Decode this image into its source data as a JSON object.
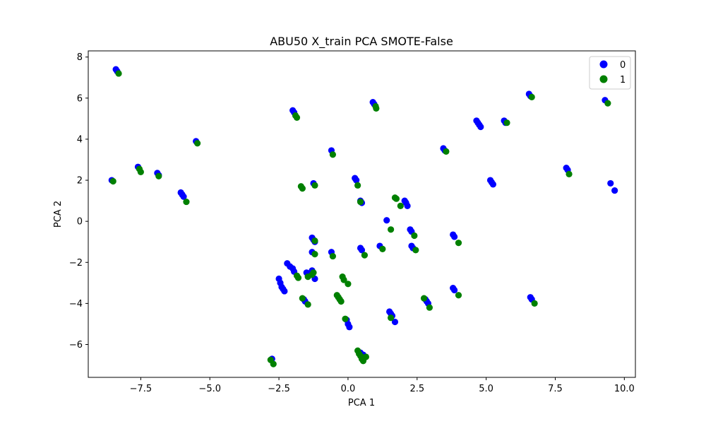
{
  "chart_data": {
    "type": "scatter",
    "title": "ABU50 X_train PCA SMOTE-False",
    "xlabel": "PCA 1",
    "ylabel": "PCA 2",
    "xlim": [
      -9.4,
      10.4
    ],
    "ylim": [
      -7.6,
      8.3
    ],
    "xticks": [
      -7.5,
      -5.0,
      -2.5,
      0.0,
      2.5,
      5.0,
      7.5,
      10.0
    ],
    "xtick_labels": [
      "−7.5",
      "−5.0",
      "−2.5",
      "0.0",
      "2.5",
      "5.0",
      "7.5",
      "10.0"
    ],
    "yticks": [
      -6,
      -4,
      -2,
      0,
      2,
      4,
      6,
      8
    ],
    "ytick_labels": [
      "−6",
      "−4",
      "−2",
      "0",
      "2",
      "4",
      "6",
      "8"
    ],
    "grid": false,
    "legend": "top-right",
    "series": [
      {
        "name": "0",
        "color": "#0000ff",
        "points": [
          [
            -8.4,
            7.4
          ],
          [
            -8.35,
            7.3
          ],
          [
            -2.0,
            5.4
          ],
          [
            -1.95,
            5.3
          ],
          [
            0.9,
            5.8
          ],
          [
            0.95,
            5.7
          ],
          [
            6.55,
            6.2
          ],
          [
            6.6,
            6.1
          ],
          [
            9.3,
            5.9
          ],
          [
            4.65,
            4.9
          ],
          [
            4.7,
            4.8
          ],
          [
            4.75,
            4.7
          ],
          [
            4.8,
            4.6
          ],
          [
            5.65,
            4.9
          ],
          [
            5.7,
            4.8
          ],
          [
            3.45,
            3.55
          ],
          [
            3.5,
            3.45
          ],
          [
            -5.5,
            3.9
          ],
          [
            -0.6,
            3.45
          ],
          [
            -7.6,
            2.65
          ],
          [
            -6.9,
            2.35
          ],
          [
            -6.85,
            2.25
          ],
          [
            -8.55,
            2.0
          ],
          [
            -6.05,
            1.4
          ],
          [
            -6.0,
            1.3
          ],
          [
            -5.95,
            1.2
          ],
          [
            -1.25,
            1.85
          ],
          [
            0.25,
            2.1
          ],
          [
            0.3,
            2.0
          ],
          [
            5.15,
            2.0
          ],
          [
            5.2,
            1.9
          ],
          [
            5.25,
            1.8
          ],
          [
            7.9,
            2.6
          ],
          [
            7.95,
            2.5
          ],
          [
            9.5,
            1.85
          ],
          [
            9.65,
            1.5
          ],
          [
            0.45,
            1.0
          ],
          [
            0.5,
            0.9
          ],
          [
            2.05,
            1.0
          ],
          [
            2.1,
            0.9
          ],
          [
            2.15,
            0.75
          ],
          [
            1.4,
            0.05
          ],
          [
            2.25,
            -0.4
          ],
          [
            2.3,
            -0.5
          ],
          [
            3.8,
            -0.65
          ],
          [
            3.85,
            -0.75
          ],
          [
            -1.3,
            -0.8
          ],
          [
            -1.25,
            -0.9
          ],
          [
            -1.2,
            -1.0
          ],
          [
            0.45,
            -1.3
          ],
          [
            0.5,
            -1.4
          ],
          [
            1.15,
            -1.2
          ],
          [
            2.3,
            -1.2
          ],
          [
            2.35,
            -1.3
          ],
          [
            -0.6,
            -1.5
          ],
          [
            -1.3,
            -1.5
          ],
          [
            -2.2,
            -2.05
          ],
          [
            -2.1,
            -2.2
          ],
          [
            -2.0,
            -2.3
          ],
          [
            -1.95,
            -2.45
          ],
          [
            -1.5,
            -2.5
          ],
          [
            -1.4,
            -2.6
          ],
          [
            -1.3,
            -2.4
          ],
          [
            -1.2,
            -2.8
          ],
          [
            -2.5,
            -2.8
          ],
          [
            -2.45,
            -3.0
          ],
          [
            -2.4,
            -3.2
          ],
          [
            -2.35,
            -3.3
          ],
          [
            -2.3,
            -3.4
          ],
          [
            3.8,
            -3.25
          ],
          [
            3.85,
            -3.35
          ],
          [
            -1.6,
            -3.8
          ],
          [
            -1.55,
            -3.9
          ],
          [
            2.8,
            -3.8
          ],
          [
            2.85,
            -3.9
          ],
          [
            2.9,
            -4.0
          ],
          [
            6.6,
            -3.7
          ],
          [
            6.65,
            -3.8
          ],
          [
            1.5,
            -4.4
          ],
          [
            1.55,
            -4.5
          ],
          [
            1.6,
            -4.6
          ],
          [
            1.7,
            -4.9
          ],
          [
            -0.05,
            -4.8
          ],
          [
            0.0,
            -5.0
          ],
          [
            0.05,
            -5.15
          ],
          [
            -2.75,
            -6.7
          ],
          [
            0.45,
            -6.4
          ],
          [
            0.55,
            -6.5
          ]
        ]
      },
      {
        "name": "1",
        "color": "#008000",
        "points": [
          [
            -8.3,
            7.2
          ],
          [
            -1.9,
            5.15
          ],
          [
            -1.85,
            5.05
          ],
          [
            1.0,
            5.6
          ],
          [
            1.02,
            5.5
          ],
          [
            6.65,
            6.05
          ],
          [
            9.4,
            5.75
          ],
          [
            5.75,
            4.8
          ],
          [
            3.55,
            3.4
          ],
          [
            -5.45,
            3.8
          ],
          [
            -0.55,
            3.25
          ],
          [
            -7.55,
            2.55
          ],
          [
            -7.5,
            2.4
          ],
          [
            -6.85,
            2.2
          ],
          [
            -8.5,
            1.95
          ],
          [
            -5.85,
            0.95
          ],
          [
            -1.7,
            1.7
          ],
          [
            -1.65,
            1.6
          ],
          [
            -1.2,
            1.75
          ],
          [
            0.35,
            1.75
          ],
          [
            1.7,
            1.15
          ],
          [
            1.75,
            1.1
          ],
          [
            1.9,
            0.75
          ],
          [
            8.0,
            2.3
          ],
          [
            0.45,
            0.95
          ],
          [
            1.55,
            -0.4
          ],
          [
            2.4,
            -0.7
          ],
          [
            4.0,
            -1.05
          ],
          [
            -1.2,
            -0.95
          ],
          [
            1.25,
            -1.35
          ],
          [
            2.45,
            -1.4
          ],
          [
            0.6,
            -1.65
          ],
          [
            -0.55,
            -1.7
          ],
          [
            -1.2,
            -1.6
          ],
          [
            -1.85,
            -2.65
          ],
          [
            -1.8,
            -2.75
          ],
          [
            -1.45,
            -2.7
          ],
          [
            -1.25,
            -2.5
          ],
          [
            -1.3,
            -2.6
          ],
          [
            -0.2,
            -2.7
          ],
          [
            -0.15,
            -2.85
          ],
          [
            0.0,
            -3.05
          ],
          [
            -0.4,
            -3.6
          ],
          [
            -0.35,
            -3.7
          ],
          [
            -0.3,
            -3.8
          ],
          [
            -0.25,
            -3.9
          ],
          [
            -1.65,
            -3.75
          ],
          [
            -1.45,
            -4.05
          ],
          [
            2.75,
            -3.75
          ],
          [
            2.95,
            -4.2
          ],
          [
            4.0,
            -3.6
          ],
          [
            6.75,
            -4.0
          ],
          [
            1.55,
            -4.7
          ],
          [
            -0.1,
            -4.75
          ],
          [
            -2.8,
            -6.75
          ],
          [
            -2.7,
            -6.95
          ],
          [
            0.35,
            -6.3
          ],
          [
            0.4,
            -6.45
          ],
          [
            0.45,
            -6.55
          ],
          [
            0.5,
            -6.7
          ],
          [
            0.55,
            -6.8
          ],
          [
            0.65,
            -6.6
          ]
        ]
      }
    ]
  }
}
